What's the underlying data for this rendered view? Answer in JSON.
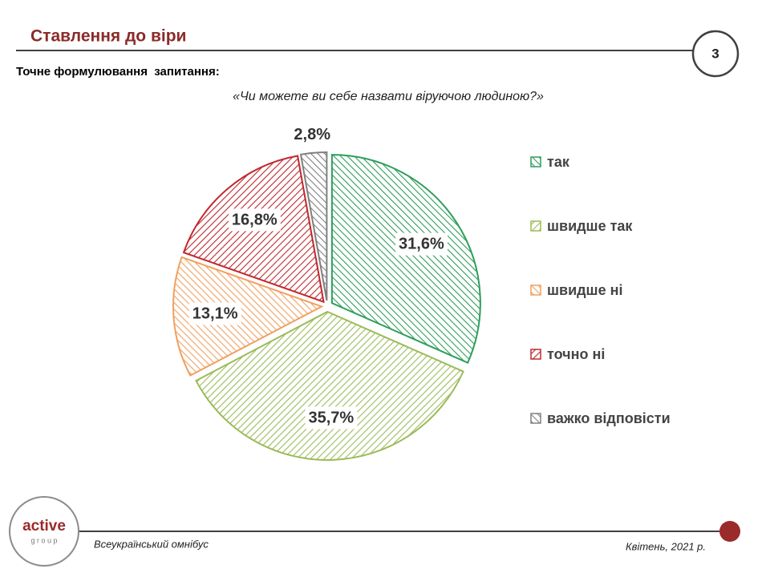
{
  "header": {
    "title": "Ставлення до віри",
    "page_number": "3",
    "question_label": "Точне формулювання  запитання:",
    "question": "«Чи можете ви себе назвати віруючою людиною?»"
  },
  "chart_data": {
    "type": "pie",
    "categories": [
      "так",
      "швидше так",
      "швидше ні",
      "точно ні",
      "важко відповісти"
    ],
    "values": [
      31.6,
      35.7,
      13.1,
      16.8,
      2.8
    ],
    "value_labels": [
      "31,6%",
      "35,7%",
      "13,1%",
      "16,8%",
      "2,8%"
    ],
    "colors": [
      "#2e9e5b",
      "#9bbb59",
      "#f0a060",
      "#c0282d",
      "#808080"
    ],
    "hatched": true,
    "legend": "right"
  },
  "footer": {
    "logo_main": "active",
    "logo_sub": "g r o u p",
    "left": "Всеукраїнський омнібус",
    "right": "Квітень, 2021 р."
  }
}
